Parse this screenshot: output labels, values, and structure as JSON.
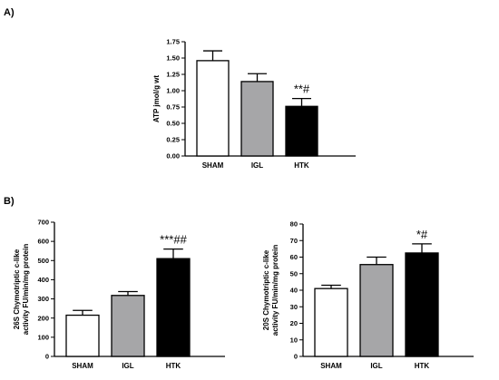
{
  "panels": [
    {
      "label": "A)"
    },
    {
      "label": "B)"
    }
  ],
  "chart_data": [
    {
      "type": "bar",
      "title": "",
      "ylabel": "ATP jmol/g wt",
      "xlabel": "",
      "categories": [
        "SHAM",
        "IGL",
        "HTK"
      ],
      "values": [
        1.46,
        1.14,
        0.76
      ],
      "errors": [
        0.15,
        0.12,
        0.12
      ],
      "colors": [
        "#ffffff",
        "#a6a6a8",
        "#000000"
      ],
      "annotations": [
        "",
        "",
        "**#"
      ],
      "ylim": [
        0,
        1.75
      ],
      "yticks": [
        0,
        0.25,
        0.5,
        0.75,
        1.0,
        1.25,
        1.5,
        1.75
      ],
      "ytick_labels": [
        "0.00",
        "0.25",
        "0.50",
        "0.75",
        "1.00",
        "1.25",
        "1.50",
        "1.75"
      ],
      "grid": false
    },
    {
      "type": "bar",
      "title": "",
      "ylabel": [
        "26S Chymotriptic c-like",
        "activity FU/min/mg protein"
      ],
      "xlabel": "",
      "categories": [
        "SHAM",
        "IGL",
        "HTK"
      ],
      "values": [
        215,
        318,
        510
      ],
      "errors": [
        25,
        20,
        50
      ],
      "colors": [
        "#ffffff",
        "#a6a6a8",
        "#000000"
      ],
      "annotations": [
        "",
        "",
        "***##"
      ],
      "ylim": [
        0,
        700
      ],
      "yticks": [
        0,
        100,
        200,
        300,
        400,
        500,
        600,
        700
      ],
      "ytick_labels": [
        "0",
        "100",
        "200",
        "300",
        "400",
        "500",
        "600",
        "700"
      ],
      "grid": false
    },
    {
      "type": "bar",
      "title": "",
      "ylabel": [
        "20S Chymotriptic c-like",
        "activity FU/min/mg protein"
      ],
      "xlabel": "",
      "categories": [
        "SHAM",
        "IGL",
        "HTK"
      ],
      "values": [
        41,
        55.5,
        62.5
      ],
      "errors": [
        2,
        4.5,
        5.5
      ],
      "colors": [
        "#ffffff",
        "#a6a6a8",
        "#000000"
      ],
      "annotations": [
        "",
        "",
        "*#"
      ],
      "ylim": [
        0,
        80
      ],
      "yticks": [
        0,
        10,
        20,
        30,
        40,
        50,
        60,
        70,
        80
      ],
      "ytick_labels": [
        "0",
        "10",
        "20",
        "30",
        "40",
        "50",
        "60",
        "70",
        "80"
      ],
      "grid": false
    }
  ]
}
